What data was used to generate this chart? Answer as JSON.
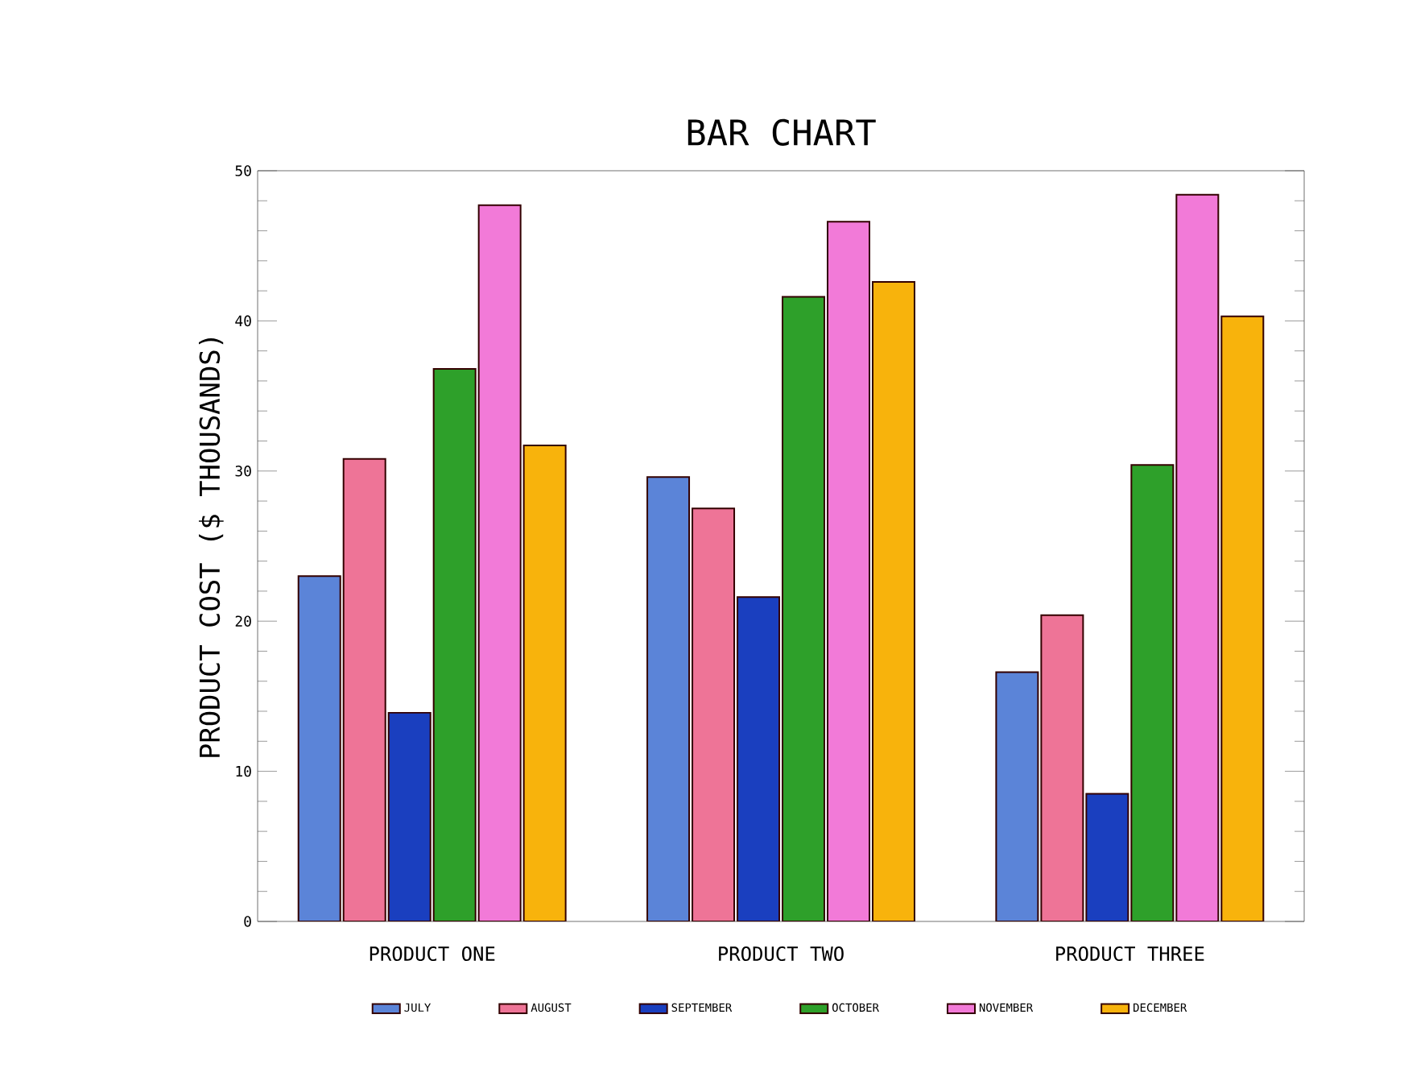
{
  "chart_data": {
    "type": "bar",
    "title": "BAR CHART",
    "ylabel": "PRODUCT COST ($ THOUSANDS)",
    "categories": [
      "PRODUCT ONE",
      "PRODUCT TWO",
      "PRODUCT THREE"
    ],
    "series": [
      {
        "name": "JULY",
        "color": "#5b84d8",
        "values": [
          23.0,
          29.6,
          16.6
        ]
      },
      {
        "name": "AUGUST",
        "color": "#ee7497",
        "values": [
          30.8,
          27.5,
          20.4
        ]
      },
      {
        "name": "SEPTEMBER",
        "color": "#1a3fbf",
        "values": [
          13.9,
          21.6,
          8.5
        ]
      },
      {
        "name": "OCTOBER",
        "color": "#2ea02a",
        "values": [
          36.8,
          41.6,
          30.4
        ]
      },
      {
        "name": "NOVEMBER",
        "color": "#f27ad8",
        "values": [
          47.7,
          46.6,
          48.4
        ]
      },
      {
        "name": "DECEMBER",
        "color": "#f8b30c",
        "values": [
          31.7,
          42.6,
          40.3
        ]
      }
    ],
    "ylim": [
      0,
      50
    ],
    "yticks": [
      0,
      10,
      20,
      30,
      40,
      50
    ],
    "legend": "bottom",
    "grid": false
  }
}
